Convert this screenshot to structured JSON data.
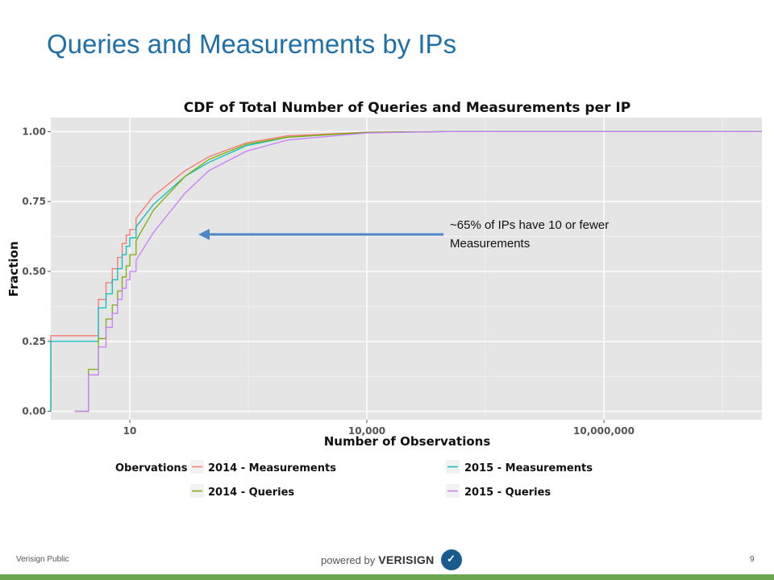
{
  "slide": {
    "title": "Queries and Measurements by IPs",
    "footer_left": "Verisign Public",
    "page_number": "9",
    "powered_by": "powered by",
    "brand": "VERISIGN"
  },
  "annotation": {
    "line1": "~65% of IPs have 10 or fewer",
    "line2": "Measurements",
    "arrow_color": "#4f86c6"
  },
  "chart_data": {
    "type": "line",
    "title": "CDF of Total Number of Queries and Measurements per IP",
    "xlabel": "Number of Observations",
    "ylabel": "Fraction",
    "x_scale": "log10",
    "xlim": [
      1,
      1000000000
    ],
    "ylim": [
      -0.03,
      1.05
    ],
    "x_ticks": [
      {
        "value": 10,
        "label": "10"
      },
      {
        "value": 10000,
        "label": "10,000"
      },
      {
        "value": 10000000,
        "label": "10,000,000"
      }
    ],
    "y_ticks": [
      {
        "value": 0,
        "label": "0.00"
      },
      {
        "value": 0.25,
        "label": "0.25"
      },
      {
        "value": 0.5,
        "label": "0.50"
      },
      {
        "value": 0.75,
        "label": "0.75"
      },
      {
        "value": 1,
        "label": "1.00"
      }
    ],
    "grid": true,
    "legend_title": "Obervations",
    "legend_position": "bottom",
    "series": [
      {
        "name": "2014 - Measurements",
        "color": "#f8766d",
        "step": true,
        "points": [
          [
            1,
            0
          ],
          [
            1,
            0.27
          ],
          [
            3,
            0.27
          ],
          [
            4,
            0.4
          ],
          [
            5,
            0.46
          ],
          [
            6,
            0.51
          ],
          [
            7,
            0.55
          ],
          [
            8,
            0.6
          ],
          [
            9,
            0.63
          ],
          [
            10,
            0.65
          ],
          [
            12,
            0.69
          ],
          [
            20,
            0.77
          ],
          [
            50,
            0.86
          ],
          [
            100,
            0.91
          ],
          [
            300,
            0.96
          ],
          [
            1000,
            0.985
          ],
          [
            10000,
            0.998
          ],
          [
            100000,
            1.0
          ],
          [
            1000000000,
            1.0
          ]
        ]
      },
      {
        "name": "2015 - Measurements",
        "color": "#00bfc4",
        "step": true,
        "points": [
          [
            1,
            0
          ],
          [
            1,
            0.25
          ],
          [
            3,
            0.25
          ],
          [
            4,
            0.37
          ],
          [
            5,
            0.42
          ],
          [
            6,
            0.47
          ],
          [
            7,
            0.51
          ],
          [
            8,
            0.56
          ],
          [
            9,
            0.59
          ],
          [
            10,
            0.62
          ],
          [
            12,
            0.66
          ],
          [
            20,
            0.74
          ],
          [
            50,
            0.84
          ],
          [
            100,
            0.89
          ],
          [
            300,
            0.95
          ],
          [
            1000,
            0.98
          ],
          [
            10000,
            0.997
          ],
          [
            100000,
            1.0
          ],
          [
            1000000000,
            1.0
          ]
        ]
      },
      {
        "name": "2014 - Queries",
        "color": "#7cae00",
        "step": true,
        "points": [
          [
            2,
            0
          ],
          [
            3,
            0
          ],
          [
            3,
            0.15
          ],
          [
            4,
            0.26
          ],
          [
            5,
            0.33
          ],
          [
            6,
            0.38
          ],
          [
            7,
            0.43
          ],
          [
            8,
            0.48
          ],
          [
            9,
            0.52
          ],
          [
            10,
            0.56
          ],
          [
            12,
            0.61
          ],
          [
            20,
            0.72
          ],
          [
            50,
            0.84
          ],
          [
            100,
            0.9
          ],
          [
            300,
            0.955
          ],
          [
            1000,
            0.98
          ],
          [
            10000,
            0.997
          ],
          [
            100000,
            1.0
          ],
          [
            1000000000,
            1.0
          ]
        ]
      },
      {
        "name": "2015 - Queries",
        "color": "#c77cff",
        "step": true,
        "points": [
          [
            2,
            0
          ],
          [
            3,
            0
          ],
          [
            3,
            0.13
          ],
          [
            4,
            0.23
          ],
          [
            5,
            0.3
          ],
          [
            6,
            0.35
          ],
          [
            7,
            0.4
          ],
          [
            8,
            0.44
          ],
          [
            9,
            0.47
          ],
          [
            10,
            0.5
          ],
          [
            12,
            0.54
          ],
          [
            20,
            0.64
          ],
          [
            50,
            0.78
          ],
          [
            100,
            0.86
          ],
          [
            300,
            0.93
          ],
          [
            1000,
            0.97
          ],
          [
            10000,
            0.995
          ],
          [
            100000,
            1.0
          ],
          [
            1000000000,
            1.0
          ]
        ]
      }
    ]
  }
}
